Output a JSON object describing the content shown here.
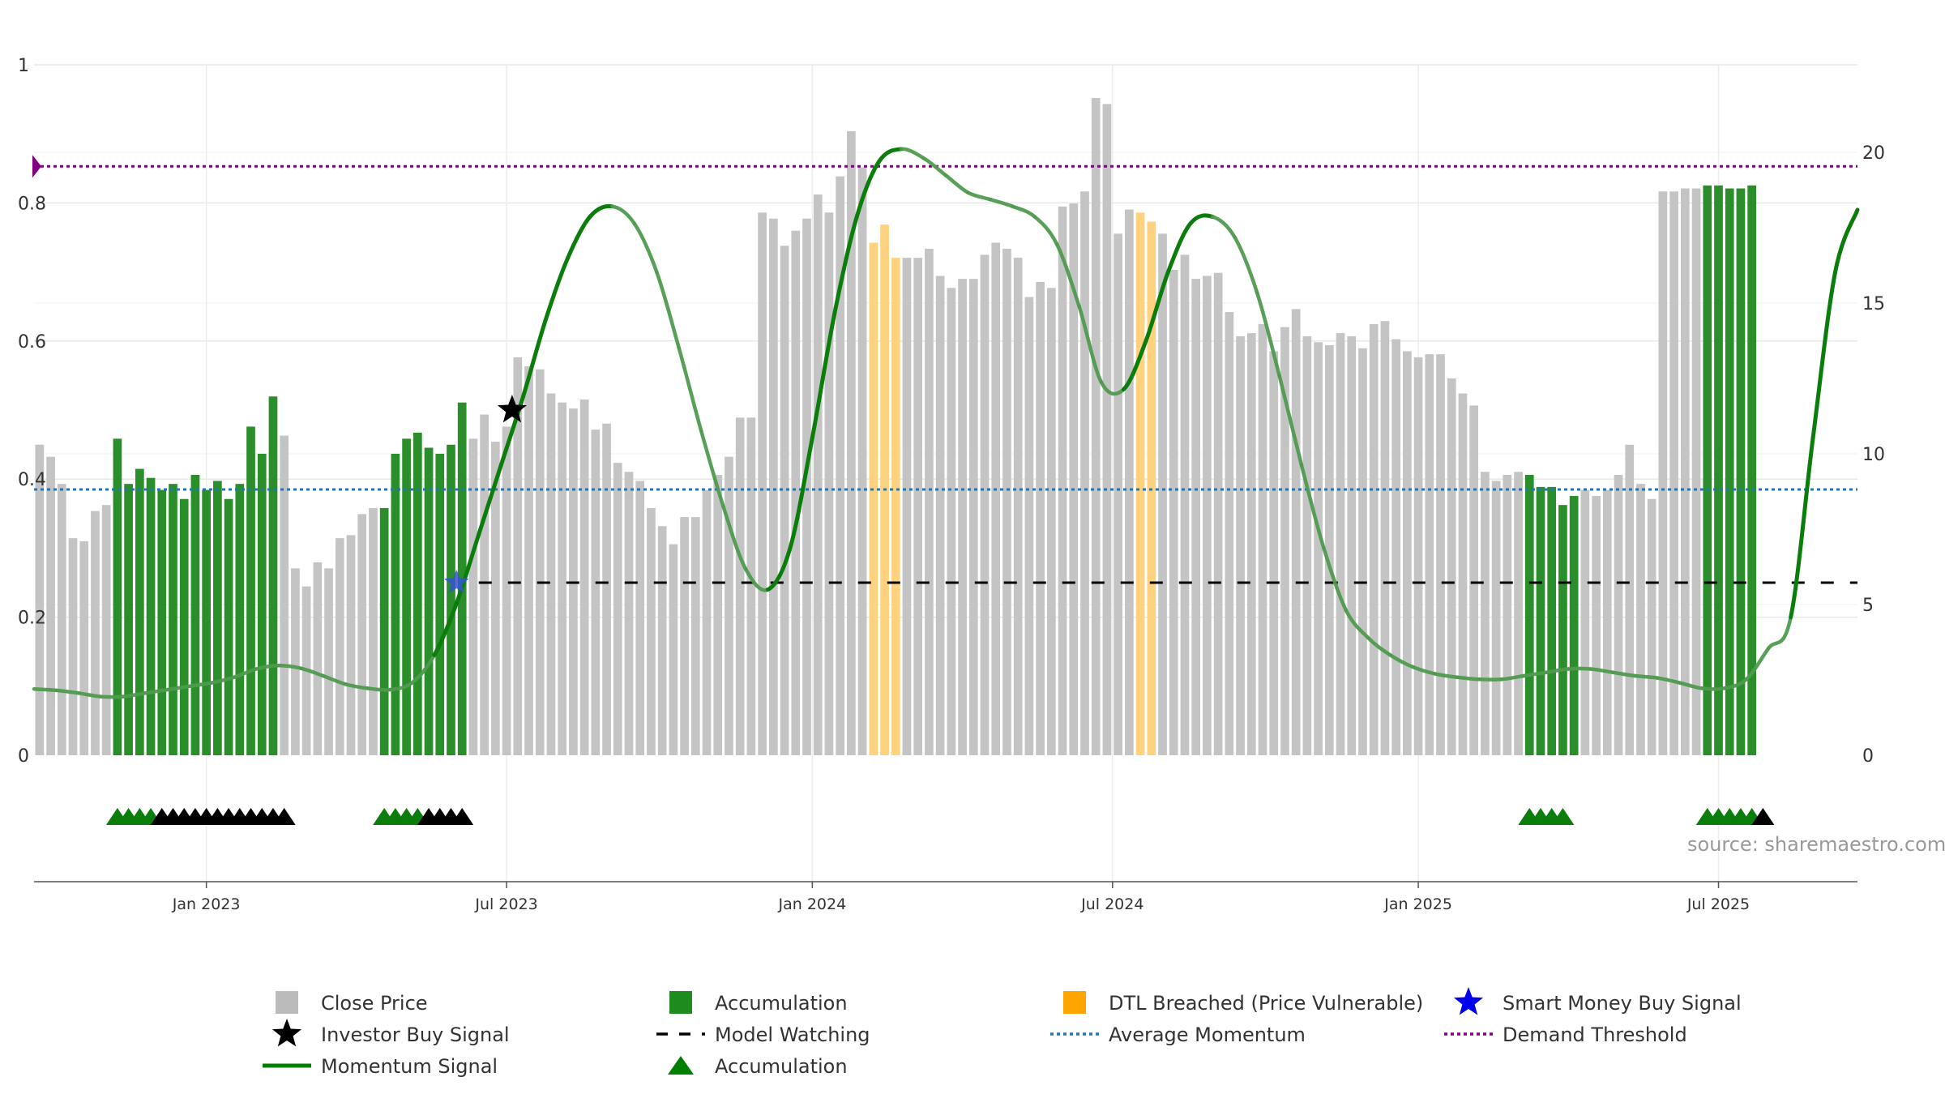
{
  "chart_data": {
    "type": "bar",
    "title": "",
    "source_text": "source: sharemaestro.com",
    "left_axis": {
      "range": [
        0,
        1
      ],
      "tick_labels": [
        "0",
        "0.2",
        "0.4",
        "0.6",
        "0.8",
        "1"
      ],
      "tick_values": [
        0,
        0.2,
        0.4,
        0.6,
        0.8,
        1
      ]
    },
    "right_axis": {
      "range": [
        0,
        22.9
      ],
      "tick_labels": [
        "0",
        "5",
        "10",
        "15",
        "20"
      ],
      "tick_values": [
        0,
        5,
        10,
        15,
        20
      ]
    },
    "x_axis": {
      "range_weeks": [
        0,
        164
      ],
      "tick_labels": [
        "Jan 2023",
        "Jul 2023",
        "Jan 2024",
        "Jul 2024",
        "Jan 2025",
        "Jul 2025"
      ],
      "tick_weeks": [
        15.5,
        42.5,
        70,
        97,
        124.5,
        151.5
      ]
    },
    "close_price": [
      10.3,
      9.9,
      9.0,
      7.2,
      7.1,
      8.1,
      8.3,
      10.5,
      9.0,
      9.5,
      9.2,
      8.8,
      9.0,
      8.5,
      9.3,
      8.8,
      9.1,
      8.5,
      9.0,
      10.9,
      10.0,
      11.9,
      10.6,
      6.2,
      5.6,
      6.4,
      6.2,
      7.2,
      7.3,
      8.0,
      8.2,
      8.2,
      10.0,
      10.5,
      10.7,
      10.2,
      10.0,
      10.3,
      11.7,
      10.5,
      11.3,
      10.4,
      10.9,
      13.2,
      12.9,
      12.8,
      12.0,
      11.7,
      11.5,
      11.8,
      10.8,
      11.0,
      9.7,
      9.4,
      9.1,
      8.2,
      7.6,
      7.0,
      7.9,
      7.9,
      8.8,
      9.3,
      9.9,
      11.2,
      11.2,
      18.0,
      17.8,
      16.9,
      17.4,
      17.8,
      18.6,
      18.0,
      19.2,
      20.7,
      19.5,
      17.0,
      17.6,
      16.5,
      16.5,
      16.5,
      16.8,
      15.9,
      15.5,
      15.8,
      15.8,
      16.6,
      17.0,
      16.8,
      16.5,
      15.2,
      15.7,
      15.5,
      18.2,
      18.3,
      18.7,
      21.8,
      21.6,
      17.3,
      18.1,
      18.0,
      17.7,
      17.3,
      16.1,
      16.6,
      15.8,
      15.9,
      16.0,
      14.7,
      13.9,
      14.0,
      14.3,
      13.4,
      14.2,
      14.8,
      13.9,
      13.7,
      13.6,
      14.0,
      13.9,
      13.5,
      14.3,
      14.4,
      13.8,
      13.4,
      13.2,
      13.3,
      13.3,
      12.5,
      12.0,
      11.6,
      9.4,
      9.1,
      9.3,
      9.4,
      9.3,
      8.9,
      8.9,
      8.3,
      8.6,
      8.8,
      8.6,
      8.8,
      9.3,
      10.3,
      9.0,
      8.5,
      18.7,
      18.7,
      18.8,
      18.8,
      18.9,
      18.9,
      18.8,
      18.8,
      18.9
    ],
    "bar_color_by_week": "gray by default; green (Accumulation) for weeks 7-21, 31-38, 134-138, 150-154; orange (DTL Breached) for weeks 75-77, 99-100",
    "accumulation_weeks": [
      [
        7,
        21
      ],
      [
        31,
        38
      ],
      [
        134,
        138
      ],
      [
        150,
        154
      ]
    ],
    "dtl_breached_weeks": [
      [
        75,
        77
      ],
      [
        99,
        100
      ]
    ],
    "momentum_signal_curve": [
      [
        0,
        0.096
      ],
      [
        2,
        0.094
      ],
      [
        4,
        0.09
      ],
      [
        6,
        0.085
      ],
      [
        8,
        0.085
      ],
      [
        10,
        0.09
      ],
      [
        12,
        0.095
      ],
      [
        14,
        0.1
      ],
      [
        16,
        0.105
      ],
      [
        18,
        0.113
      ],
      [
        20,
        0.125
      ],
      [
        22,
        0.13
      ],
      [
        24,
        0.126
      ],
      [
        26,
        0.115
      ],
      [
        28,
        0.103
      ],
      [
        30,
        0.097
      ],
      [
        32,
        0.095
      ],
      [
        34,
        0.105
      ],
      [
        36,
        0.145
      ],
      [
        38,
        0.22
      ],
      [
        40,
        0.32
      ],
      [
        42,
        0.42
      ],
      [
        44,
        0.52
      ],
      [
        46,
        0.63
      ],
      [
        48,
        0.72
      ],
      [
        50,
        0.78
      ],
      [
        52,
        0.795
      ],
      [
        54,
        0.77
      ],
      [
        56,
        0.7
      ],
      [
        58,
        0.59
      ],
      [
        60,
        0.47
      ],
      [
        62,
        0.36
      ],
      [
        64,
        0.27
      ],
      [
        66,
        0.24
      ],
      [
        68,
        0.3
      ],
      [
        70,
        0.46
      ],
      [
        72,
        0.64
      ],
      [
        74,
        0.78
      ],
      [
        76,
        0.86
      ],
      [
        78,
        0.878
      ],
      [
        80,
        0.865
      ],
      [
        82,
        0.84
      ],
      [
        84,
        0.815
      ],
      [
        86,
        0.805
      ],
      [
        88,
        0.795
      ],
      [
        90,
        0.78
      ],
      [
        92,
        0.74
      ],
      [
        94,
        0.65
      ],
      [
        96,
        0.54
      ],
      [
        98,
        0.53
      ],
      [
        100,
        0.6
      ],
      [
        102,
        0.7
      ],
      [
        104,
        0.77
      ],
      [
        106,
        0.78
      ],
      [
        108,
        0.75
      ],
      [
        110,
        0.67
      ],
      [
        112,
        0.55
      ],
      [
        114,
        0.42
      ],
      [
        116,
        0.3
      ],
      [
        118,
        0.21
      ],
      [
        120,
        0.17
      ],
      [
        122,
        0.145
      ],
      [
        124,
        0.128
      ],
      [
        126,
        0.118
      ],
      [
        128,
        0.113
      ],
      [
        130,
        0.11
      ],
      [
        132,
        0.11
      ],
      [
        134,
        0.115
      ],
      [
        136,
        0.12
      ],
      [
        138,
        0.125
      ],
      [
        140,
        0.125
      ],
      [
        142,
        0.12
      ],
      [
        144,
        0.115
      ],
      [
        146,
        0.112
      ],
      [
        148,
        0.105
      ],
      [
        150,
        0.097
      ],
      [
        152,
        0.097
      ],
      [
        154,
        0.11
      ],
      [
        156,
        0.155
      ],
      [
        158,
        0.2
      ],
      [
        160,
        0.46
      ],
      [
        162,
        0.7
      ],
      [
        164,
        0.79
      ]
    ],
    "momentum_signal_style": "bright green solid where momentum is rising or holding high, faded green where declining",
    "model_watching": {
      "value": 0.25,
      "from_week": 40,
      "to_week": 164
    },
    "average_momentum": 0.385,
    "demand_threshold": 0.853,
    "investor_buy_signal": {
      "week": 43,
      "value": 0.5
    },
    "smart_money_buy_signal": {
      "week": 38,
      "value": 0.25
    },
    "accumulation_markers": {
      "green_weeks": [
        7,
        8,
        9,
        10,
        31,
        32,
        33,
        34,
        134,
        135,
        136,
        137,
        150,
        151,
        152,
        153,
        154
      ],
      "black_weeks": [
        11,
        12,
        13,
        14,
        15,
        16,
        17,
        18,
        19,
        20,
        21,
        22,
        35,
        36,
        37,
        38,
        155
      ]
    },
    "legend": [
      {
        "label": "Close Price",
        "kind": "square",
        "color": "#bbbbbb"
      },
      {
        "label": "Accumulation",
        "kind": "square",
        "color": "#1e8b1e"
      },
      {
        "label": "DTL Breached (Price Vulnerable)",
        "kind": "square",
        "color": "#ffa500"
      },
      {
        "label": "Smart Money Buy Signal",
        "kind": "star",
        "color": "#0000ee"
      },
      {
        "label": "Investor Buy Signal",
        "kind": "star",
        "color": "#000000"
      },
      {
        "label": "Model Watching",
        "kind": "dash",
        "color": "#000000"
      },
      {
        "label": "Average Momentum",
        "kind": "dot",
        "color": "#1f77b4"
      },
      {
        "label": "Demand Threshold",
        "kind": "dot",
        "color": "#800080"
      },
      {
        "label": "Momentum Signal",
        "kind": "line",
        "color": "#008000"
      },
      {
        "label": "Accumulation",
        "kind": "triangle",
        "color": "#008000"
      }
    ],
    "colors": {
      "close": "#c4c4c4",
      "accumulation": "#2a8f2a",
      "dtl": "#ffd27f",
      "momentum": "#0a7d0a",
      "momentum_faded": "#4f9a4f",
      "average": "#1f77b4",
      "threshold": "#800080",
      "watch": "#000000",
      "smart": "#3355cc",
      "investor": "#000000",
      "grid": "#e8e8e8"
    }
  }
}
